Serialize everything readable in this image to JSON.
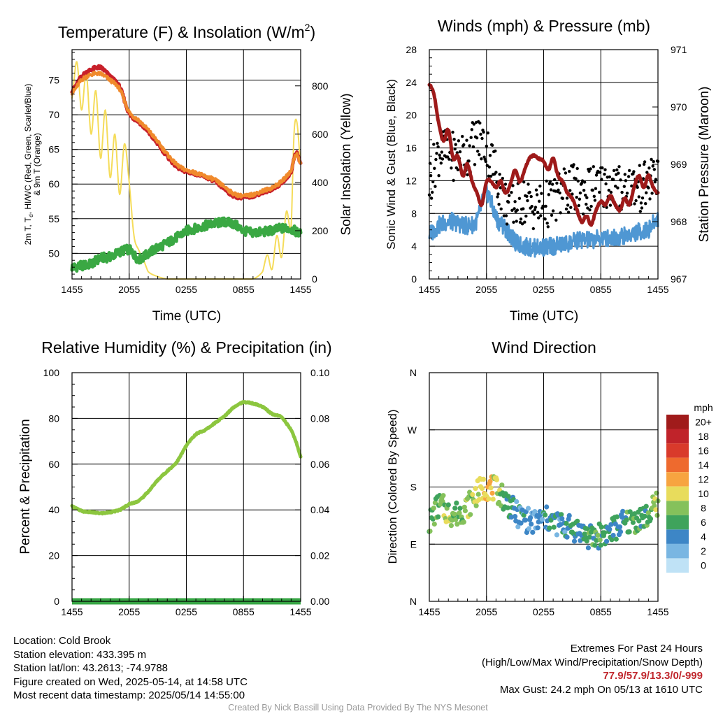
{
  "panels": {
    "temperature": {
      "title_main": "Temperature (F) & Insolation (W/m",
      "title_sup": "2",
      "title_end": ")",
      "ylabel_lines": [
        "2m T, T",
        "d",
        ", HI/WC (Red, Green, Scarlet/Blue)",
        "& 9m T (Orange)"
      ],
      "ylabel_right": "Solar Insolation (Yellow)",
      "xlabel": "Time (UTC)"
    },
    "winds": {
      "title": "Winds (mph) & Pressure (mb)",
      "ylabel_left": "Sonic Wind & Gust (Blue, Black)",
      "ylabel_right": "Station Pressure (Maroon)",
      "xlabel": "Time (UTC)"
    },
    "humidity": {
      "title": "Relative Humidity (%) & Precipitation (in)",
      "ylabel_left": "Percent & Precipitation"
    },
    "direction": {
      "title": "Wind Direction",
      "ylabel_left": "Direction (Colored By Speed)",
      "colorbar_title": "mph",
      "colorbar_labels": [
        "20+",
        "18",
        "16",
        "14",
        "12",
        "10",
        "8",
        "6",
        "4",
        "2",
        "0"
      ],
      "colorbar_colors": [
        "#a01b1b",
        "#c0232a",
        "#d93a2b",
        "#ee6a2e",
        "#f7a440",
        "#e8dc5c",
        "#85c15b",
        "#3fa35c",
        "#3d86c6",
        "#79b6e2",
        "#bfe2f6"
      ]
    }
  },
  "info": {
    "location": "Location: Cold Brook",
    "elevation": "Station elevation: 433.395 m",
    "latlon": "Station lat/lon: 43.2613; -74.9788",
    "created": "Figure created on Wed, 2025-05-14, at 14:58 UTC",
    "timestamp": "Most recent data timestamp: 2025/05/14 14:55:00"
  },
  "extremes": {
    "title": "Extremes For Past 24 Hours",
    "subtitle": "(High/Low/Max Wind/Precipitation/Snow Depth)",
    "values": "77.9/57.9/13.3/0/-999",
    "max_gust": "Max Gust: 24.2 mph On 05/13 at 1610 UTC"
  },
  "credit": "Created By Nick Bassill Using Data Provided By The NYS Mesonet",
  "colors": {
    "temp_red": "#c8202a",
    "temp_orange": "#f08a2c",
    "dewpoint_green": "#3aa843",
    "solar_yellow": "#f5dc5a",
    "wind_blue": "#4f97d3",
    "gust_black": "#000000",
    "pressure_maroon": "#9e1a1a",
    "rh_green": "#8cc63f",
    "precip_green": "#37a645"
  },
  "chart_data": [
    {
      "type": "line",
      "title": "Temperature (F) & Insolation (W/m2)",
      "xlabel": "Time (UTC)",
      "ylabel": "2m T, Td, HI/WC (Red, Green, Scarlet/Blue) & 9m T (Orange)",
      "ylabel_right": "Solar Insolation (Yellow)",
      "x_ticks": [
        "1455",
        "2055",
        "0255",
        "0855",
        "1455"
      ],
      "y_ticks": [
        50,
        55,
        60,
        65,
        70,
        75
      ],
      "y2_ticks": [
        0,
        200,
        400,
        600,
        800
      ],
      "ylim": [
        46.3,
        79.4
      ],
      "y2lim": [
        0,
        950
      ],
      "xlim_hours": [
        0,
        24
      ],
      "series": [
        {
          "name": "2m T",
          "axis": "left",
          "color": "#c8202a",
          "x": [
            0,
            1,
            2,
            3,
            4,
            5,
            6,
            7,
            8,
            9,
            10,
            11,
            12,
            13,
            14,
            15,
            16,
            17,
            18,
            19,
            20,
            21,
            22,
            23,
            23.5,
            24
          ],
          "y": [
            73.5,
            75.5,
            76.5,
            76.8,
            75.5,
            74,
            70.2,
            69,
            67.5,
            65.8,
            64,
            62.5,
            61.8,
            61.5,
            61,
            60.4,
            59.3,
            58.3,
            58.1,
            58.3,
            58.8,
            59.3,
            60.2,
            61.8,
            64.5,
            63
          ]
        },
        {
          "name": "9m T",
          "axis": "left",
          "color": "#f08a2c",
          "x": [
            0,
            1,
            2,
            3,
            4,
            5,
            6,
            7,
            8,
            9,
            10,
            11,
            12,
            13,
            14,
            15,
            16,
            17,
            18,
            19,
            20,
            21,
            22,
            23,
            23.5,
            24
          ],
          "y": [
            73.2,
            75,
            75.8,
            75.9,
            75,
            73.7,
            70.4,
            69.2,
            67.8,
            66.1,
            64.3,
            62.8,
            62,
            61.6,
            61.1,
            60.6,
            59.6,
            58.6,
            58.3,
            58.5,
            59,
            59.5,
            60.4,
            62,
            64.3,
            63
          ]
        },
        {
          "name": "2m Td",
          "axis": "left",
          "color": "#3aa843",
          "x": [
            0,
            1,
            2,
            3,
            4,
            5,
            6,
            7,
            8,
            9,
            10,
            11,
            12,
            13,
            14,
            15,
            16,
            17,
            18,
            19,
            20,
            21,
            22,
            23,
            24
          ],
          "y": [
            48,
            48.2,
            48.5,
            49.3,
            49.5,
            50.2,
            50.5,
            49.2,
            50,
            50.8,
            51.5,
            52.3,
            53.2,
            53.6,
            54,
            54.3,
            54.5,
            54.2,
            53.3,
            53,
            53.1,
            53.3,
            53.6,
            53.5,
            52.8
          ]
        },
        {
          "name": "Solar Insolation",
          "axis": "right",
          "color": "#f5dc5a",
          "x": [
            0,
            0.5,
            1,
            1.5,
            2,
            2.5,
            3,
            3.5,
            4,
            4.5,
            5,
            5.5,
            6,
            6.5,
            7,
            7.5,
            8,
            9,
            10,
            11,
            12,
            13,
            14,
            15,
            16,
            17,
            18,
            19,
            20,
            20.5,
            21,
            21.5,
            22,
            22.5,
            23,
            23.3,
            23.6,
            24
          ],
          "y": [
            750,
            900,
            700,
            850,
            600,
            780,
            500,
            700,
            420,
            600,
            350,
            560,
            400,
            180,
            120,
            80,
            30,
            10,
            0,
            0,
            0,
            0,
            0,
            0,
            0,
            0,
            0,
            0,
            30,
            100,
            40,
            180,
            90,
            280,
            220,
            600,
            650,
            480
          ]
        }
      ]
    },
    {
      "type": "line",
      "title": "Winds (mph) & Pressure (mb)",
      "xlabel": "Time (UTC)",
      "ylabel": "Sonic Wind & Gust (Blue, Black)",
      "ylabel_right": "Station Pressure (Maroon)",
      "x_ticks": [
        "1455",
        "2055",
        "0255",
        "0855",
        "1455"
      ],
      "y_ticks": [
        0,
        4,
        8,
        12,
        16,
        20,
        24,
        28
      ],
      "y2_ticks": [
        967,
        968,
        969,
        970,
        971
      ],
      "ylim": [
        0,
        28
      ],
      "y2lim": [
        967,
        971
      ],
      "xlim_hours": [
        0,
        24
      ],
      "series": [
        {
          "name": "Sonic Wind",
          "axis": "left",
          "color": "#4f97d3",
          "x": [
            0,
            1,
            2,
            3,
            4,
            5,
            6,
            7,
            8,
            9,
            10,
            11,
            12,
            13,
            14,
            15,
            16,
            17,
            18,
            19,
            20,
            21,
            22,
            23,
            24
          ],
          "y": [
            5.5,
            6.5,
            7,
            6.8,
            6.5,
            7.2,
            10.5,
            7.5,
            6.2,
            4.5,
            4,
            3.8,
            3.9,
            4,
            4.2,
            4.5,
            4.8,
            4.7,
            5,
            5,
            5.2,
            5.4,
            5.8,
            6,
            7.5
          ]
        },
        {
          "name": "Gust",
          "axis": "left",
          "color": "#000000",
          "style": "points",
          "x": [
            0,
            1,
            2,
            3,
            4,
            5,
            6,
            7,
            8,
            9,
            10,
            11,
            12,
            13,
            14,
            15,
            16,
            17,
            18,
            19,
            20,
            21,
            22,
            23,
            24
          ],
          "y": [
            12,
            15.5,
            15.2,
            15,
            15.5,
            17,
            16,
            13,
            9.5,
            9,
            9.5,
            8.8,
            9,
            9.5,
            10.5,
            11,
            10.8,
            11,
            11.3,
            11.5,
            11,
            11.5,
            11,
            11.8,
            13
          ]
        },
        {
          "name": "Station Pressure",
          "axis": "right",
          "color": "#9e1a1a",
          "x": [
            0,
            0.5,
            1,
            1.5,
            2,
            2.5,
            3,
            3.5,
            4,
            4.5,
            5,
            5.5,
            6,
            6.5,
            7,
            7.5,
            8,
            8.5,
            9,
            9.5,
            10,
            10.5,
            11,
            11.5,
            12,
            12.5,
            13,
            13.5,
            14,
            14.5,
            15,
            15.5,
            16,
            16.5,
            17,
            17.5,
            18,
            18.5,
            19,
            19.5,
            20,
            20.5,
            21,
            21.5,
            22,
            22.5,
            23,
            23.5,
            24
          ],
          "y": [
            970.4,
            970.2,
            969.7,
            969.4,
            969.6,
            969.1,
            969.15,
            968.8,
            969.0,
            968.7,
            968.5,
            968.3,
            968.7,
            968.7,
            968.6,
            968.7,
            968.5,
            968.65,
            968.9,
            968.7,
            968.9,
            969.1,
            969.15,
            969.1,
            969.05,
            968.9,
            969.1,
            968.8,
            968.7,
            968.5,
            968.4,
            968.2,
            968.0,
            968.1,
            967.95,
            968.2,
            968.35,
            968.3,
            968.45,
            968.3,
            968.2,
            968.4,
            968.3,
            968.6,
            968.8,
            968.6,
            968.8,
            968.6,
            968.5
          ]
        }
      ]
    },
    {
      "type": "line",
      "title": "Relative Humidity (%) & Precipitation (in)",
      "ylabel": "Percent & Precipitation",
      "x_ticks": [
        "1455",
        "2055",
        "0255",
        "0855",
        "1455"
      ],
      "y_ticks": [
        0,
        20,
        40,
        60,
        80,
        100
      ],
      "y2_ticks": [
        "0.00",
        "0.02",
        "0.04",
        "0.06",
        "0.08",
        "0.10"
      ],
      "ylim": [
        0,
        100
      ],
      "y2lim": [
        0,
        0.1
      ],
      "xlim_hours": [
        0,
        24
      ],
      "series": [
        {
          "name": "Relative Humidity",
          "axis": "left",
          "color": "#8cc63f",
          "x": [
            0,
            1,
            2,
            3,
            4,
            5,
            6,
            7,
            8,
            9,
            10,
            11,
            12,
            13,
            14,
            15,
            16,
            17,
            18,
            19,
            20,
            21,
            22,
            23,
            23.5,
            24
          ],
          "y": [
            41.5,
            39.5,
            39,
            38.5,
            39,
            40,
            42.5,
            44,
            48,
            53,
            57,
            61,
            68,
            73,
            75,
            78,
            81,
            85,
            87,
            86.5,
            85,
            82,
            80.5,
            75,
            70,
            63.5
          ]
        },
        {
          "name": "Precipitation",
          "axis": "right",
          "color": "#37a645",
          "x": [
            0,
            24
          ],
          "y": [
            0,
            0
          ]
        }
      ]
    },
    {
      "type": "scatter",
      "title": "Wind Direction",
      "ylabel": "Direction (Colored By Speed)",
      "x_ticks": [
        "1455",
        "2055",
        "0255",
        "0855",
        "1455"
      ],
      "y_ticks": [
        "N",
        "E",
        "S",
        "W",
        "N"
      ],
      "ylim_deg": [
        0,
        360
      ],
      "xlim_hours": [
        0,
        24
      ],
      "colorbar": {
        "label": "mph",
        "ticks": [
          "0",
          "2",
          "4",
          "6",
          "8",
          "10",
          "12",
          "14",
          "16",
          "18",
          "20+"
        ]
      },
      "series": [
        {
          "name": "Wind Direction",
          "x": [
            0,
            1,
            2,
            3,
            4,
            5,
            6,
            7,
            8,
            9,
            10,
            11,
            12,
            13,
            14,
            15,
            16,
            17,
            18,
            19,
            20,
            21,
            22,
            23,
            24
          ],
          "y": [
            125,
            150,
            140,
            138,
            150,
            170,
            180,
            175,
            160,
            140,
            130,
            125,
            130,
            125,
            120,
            115,
            110,
            100,
            105,
            110,
            120,
            125,
            130,
            135,
            155
          ],
          "speed": [
            7,
            7,
            8,
            7,
            8,
            9,
            12,
            9,
            6,
            4,
            4,
            3,
            4,
            4,
            4,
            5,
            5,
            6,
            6,
            5,
            5,
            6,
            6,
            6,
            9
          ]
        }
      ]
    }
  ]
}
